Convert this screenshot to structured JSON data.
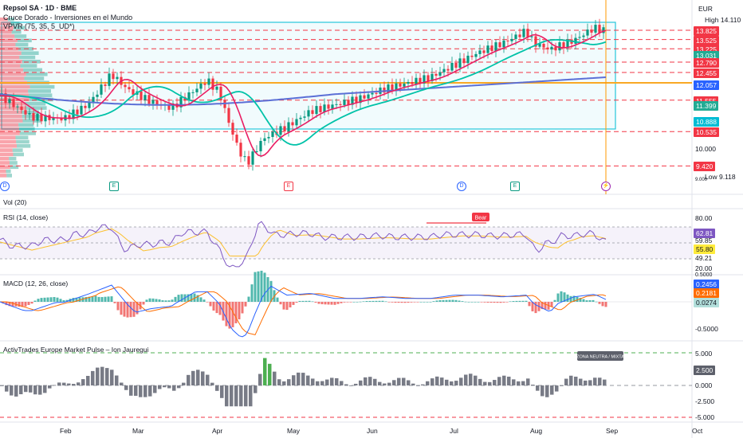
{
  "header": {
    "symbol_title": "Repsol SA · 1D · BME",
    "indicator_1": "Cruce Dorado - Inversiones en el Mundo",
    "indicator_2": "VPVR (75, 35, 5_UD*)",
    "currency": "EUR"
  },
  "price_axis": {
    "high_label": "High",
    "high_value": "14.110",
    "low_label": "Low",
    "low_value": "9.118",
    "ticks": [
      "10.000",
      "9.000"
    ],
    "tags": [
      {
        "value": "13.825",
        "color": "#f23645"
      },
      {
        "value": "13.525",
        "color": "#f23645"
      },
      {
        "value": "13.225",
        "color": "#f23645"
      },
      {
        "value": "13.031",
        "color": "#22ab94"
      },
      {
        "value": "12.790",
        "color": "#f23645"
      },
      {
        "value": "12.455",
        "color": "#f23645"
      },
      {
        "value": "12.057",
        "color": "#2962ff"
      },
      {
        "value": "11.555",
        "color": "#f23645"
      },
      {
        "value": "11.399",
        "color": "#22ab94"
      },
      {
        "value": "10.888",
        "color": "#00bcd4"
      },
      {
        "value": "10.535",
        "color": "#f23645"
      },
      {
        "value": "9.420",
        "color": "#f23645"
      }
    ]
  },
  "events": [
    "D",
    "E",
    "E",
    "D",
    "E",
    "⚡"
  ],
  "volume_pane": {
    "title": "Vol (20)"
  },
  "rsi_pane": {
    "title": "RSI (14, close)",
    "bear_label": "Bear",
    "axis": [
      "80.00",
      "62.81",
      "59.85",
      "55.80",
      "49.21",
      "20.00"
    ],
    "tag_colors": [
      "#7e57c2",
      "#ffeb3b"
    ]
  },
  "macd_pane": {
    "title": "MACD (12, 26, close)",
    "axis": [
      "0.5000",
      "0.2456",
      "0.2181",
      "0.0274",
      "-0.5000"
    ],
    "tag_colors": [
      "#2962ff",
      "#ff6d00",
      "#b2dfdb"
    ]
  },
  "pulse_pane": {
    "title": "ActivTrades Europe Market Pulse – Ion Jauregui",
    "zone_label": "ZONA NEUTRA / MIXTA",
    "axis": [
      "5.000",
      "2.500",
      "0.000",
      "-2.500",
      "-5.000"
    ]
  },
  "time_axis": [
    "Feb",
    "Mar",
    "Apr",
    "May",
    "Jun",
    "Jul",
    "Aug",
    "Sep",
    "Oct"
  ],
  "colors": {
    "up": "#089981",
    "down": "#f23645",
    "ma_fast": "#e91e63",
    "ma_mid": "#00c2a8",
    "ma_slow": "#5b6fd6"
  }
}
